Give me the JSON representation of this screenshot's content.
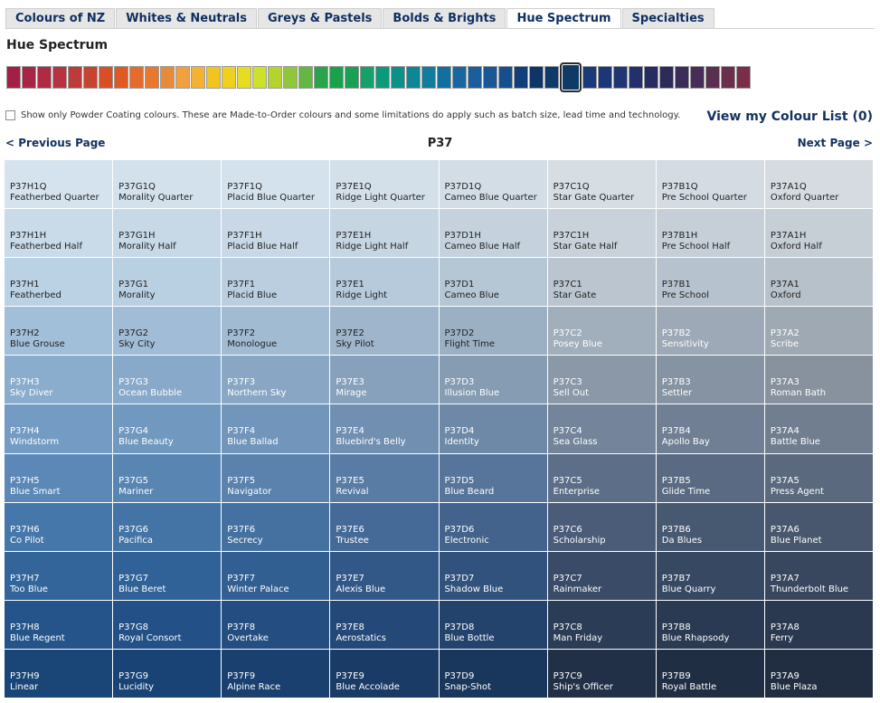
{
  "tabs": [
    {
      "label": "Colours of NZ",
      "active": false
    },
    {
      "label": "Whites & Neutrals",
      "active": false
    },
    {
      "label": "Greys & Pastels",
      "active": false
    },
    {
      "label": "Bolds & Brights",
      "active": false
    },
    {
      "label": "Hue Spectrum",
      "active": true
    },
    {
      "label": "Specialties",
      "active": false
    }
  ],
  "section_title": "Hue Spectrum",
  "hue_strip": {
    "selected_index": 36,
    "colors": [
      "#a31f45",
      "#a92545",
      "#b02b42",
      "#b9323f",
      "#bf3b39",
      "#c7422f",
      "#d94f25",
      "#e15922",
      "#e56b2d",
      "#e9782f",
      "#e88a3c",
      "#f0a13e",
      "#f3b233",
      "#f2c41f",
      "#efd11d",
      "#e6dc24",
      "#cde02a",
      "#b2d42b",
      "#8fc63a",
      "#64b743",
      "#2aa448",
      "#18a34a",
      "#18a153",
      "#16a06a",
      "#0d9a7b",
      "#0c9088",
      "#0b8795",
      "#127c9d",
      "#11709f",
      "#1967a0",
      "#1a5e9e",
      "#1b5797",
      "#174e8d",
      "#103f7a",
      "#0f3568",
      "#0f3a6a",
      "#0e3b66",
      "#1a3a79",
      "#1c3778",
      "#213574",
      "#24306b",
      "#262c60",
      "#2d2b58",
      "#3b2d57",
      "#4a2d56",
      "#59304f",
      "#6b2f4d",
      "#7a2e4a"
    ]
  },
  "powder_text": "Show only Powder Coating colours. These are Made-to-Order colours and some limitations do apply such as batch size, lead time and technology.",
  "colour_list_label": "View my Colour List (0)",
  "pager": {
    "prev": "< Previous Page",
    "next": "Next Page >",
    "page": "P37"
  },
  "grid": {
    "light_text": "#222222",
    "dark_text": "#ffffff",
    "rows": [
      [
        {
          "code": "P37H1Q",
          "name": "Featherbed Quarter",
          "color": "#d5e3ee",
          "text": "dark"
        },
        {
          "code": "P37G1Q",
          "name": "Morality Quarter",
          "color": "#d3e1ec",
          "text": "dark"
        },
        {
          "code": "P37F1Q",
          "name": "Placid Blue Quarter",
          "color": "#d4e2ed",
          "text": "dark"
        },
        {
          "code": "P37E1Q",
          "name": "Ridge Light Quarter",
          "color": "#d3dfe9",
          "text": "dark"
        },
        {
          "code": "P37D1Q",
          "name": "Cameo Blue Quarter",
          "color": "#d3dde6",
          "text": "dark"
        },
        {
          "code": "P37C1Q",
          "name": "Star Gate Quarter",
          "color": "#d6dde3",
          "text": "dark"
        },
        {
          "code": "P37B1Q",
          "name": "Pre School Quarter",
          "color": "#d4dbe2",
          "text": "dark"
        },
        {
          "code": "P37A1Q",
          "name": "Oxford Quarter",
          "color": "#d5dbe0",
          "text": "dark"
        }
      ],
      [
        {
          "code": "P37H1H",
          "name": "Featherbed Half",
          "color": "#c9dae9",
          "text": "dark"
        },
        {
          "code": "P37G1H",
          "name": "Morality Half",
          "color": "#c7d8e7",
          "text": "dark"
        },
        {
          "code": "P37F1H",
          "name": "Placid Blue Half",
          "color": "#c8d8e6",
          "text": "dark"
        },
        {
          "code": "P37E1H",
          "name": "Ridge Light Half",
          "color": "#c6d5e2",
          "text": "dark"
        },
        {
          "code": "P37D1H",
          "name": "Cameo Blue Half",
          "color": "#c5d2de",
          "text": "dark"
        },
        {
          "code": "P37C1H",
          "name": "Star Gate Half",
          "color": "#c9d2da",
          "text": "dark"
        },
        {
          "code": "P37B1H",
          "name": "Pre School Half",
          "color": "#c6cfd8",
          "text": "dark"
        },
        {
          "code": "P37A1H",
          "name": "Oxford Half",
          "color": "#c7cfd6",
          "text": "dark"
        }
      ],
      [
        {
          "code": "P37H1",
          "name": "Featherbed",
          "color": "#bbd1e4",
          "text": "dark"
        },
        {
          "code": "P37G1",
          "name": "Morality",
          "color": "#b9cfe2",
          "text": "dark"
        },
        {
          "code": "P37F1",
          "name": "Placid Blue",
          "color": "#bacee0",
          "text": "dark"
        },
        {
          "code": "P37E1",
          "name": "Ridge Light",
          "color": "#b7cadc",
          "text": "dark"
        },
        {
          "code": "P37D1",
          "name": "Cameo Blue",
          "color": "#b5c6d5",
          "text": "dark"
        },
        {
          "code": "P37C1",
          "name": "Star Gate",
          "color": "#bac5d0",
          "text": "dark"
        },
        {
          "code": "P37B1",
          "name": "Pre School",
          "color": "#b6c2cd",
          "text": "dark"
        },
        {
          "code": "P37A1",
          "name": "Oxford",
          "color": "#b7c1ca",
          "text": "dark"
        }
      ],
      [
        {
          "code": "P37H2",
          "name": "Blue Grouse",
          "color": "#a2bfd9",
          "text": "dark"
        },
        {
          "code": "P37G2",
          "name": "Sky City",
          "color": "#a0bcd6",
          "text": "dark"
        },
        {
          "code": "P37F2",
          "name": "Monologue",
          "color": "#a1bbd3",
          "text": "dark"
        },
        {
          "code": "P37E2",
          "name": "Sky Pilot",
          "color": "#9fb5cb",
          "text": "dark"
        },
        {
          "code": "P37D2",
          "name": "Flight Time",
          "color": "#9cb0c4",
          "text": "dark"
        },
        {
          "code": "P37C2",
          "name": "Posey Blue",
          "color": "#a1aebb",
          "text": "light"
        },
        {
          "code": "P37B2",
          "name": "Sensitivity",
          "color": "#9da9b6",
          "text": "light"
        },
        {
          "code": "P37A2",
          "name": "Scribe",
          "color": "#9ea9b3",
          "text": "light"
        }
      ],
      [
        {
          "code": "P37H3",
          "name": "Sky Diver",
          "color": "#8aaccd",
          "text": "light"
        },
        {
          "code": "P37G3",
          "name": "Ocean Bubble",
          "color": "#88a9c9",
          "text": "light"
        },
        {
          "code": "P37F3",
          "name": "Northern Sky",
          "color": "#89a7c5",
          "text": "light"
        },
        {
          "code": "P37E3",
          "name": "Mirage",
          "color": "#87a1bc",
          "text": "light"
        },
        {
          "code": "P37D3",
          "name": "Illusion Blue",
          "color": "#859cb3",
          "text": "light"
        },
        {
          "code": "P37C3",
          "name": "Sell Out",
          "color": "#8a98a8",
          "text": "light"
        },
        {
          "code": "P37B3",
          "name": "Settler",
          "color": "#8693a2",
          "text": "light"
        },
        {
          "code": "P37A3",
          "name": "Roman Bath",
          "color": "#87929e",
          "text": "light"
        }
      ],
      [
        {
          "code": "P37H4",
          "name": "Windstorm",
          "color": "#739bc3",
          "text": "light"
        },
        {
          "code": "P37G4",
          "name": "Blue Beauty",
          "color": "#7198bf",
          "text": "light"
        },
        {
          "code": "P37F4",
          "name": "Blue Ballad",
          "color": "#7295bb",
          "text": "light"
        },
        {
          "code": "P37E4",
          "name": "Bluebird's Belly",
          "color": "#708fb1",
          "text": "light"
        },
        {
          "code": "P37D4",
          "name": "Identity",
          "color": "#6e89a7",
          "text": "light"
        },
        {
          "code": "P37C4",
          "name": "Sea Glass",
          "color": "#74849a",
          "text": "light"
        },
        {
          "code": "P37B4",
          "name": "Apollo Bay",
          "color": "#707f93",
          "text": "light"
        },
        {
          "code": "P37A4",
          "name": "Battle Blue",
          "color": "#717e8f",
          "text": "light"
        }
      ],
      [
        {
          "code": "P37H5",
          "name": "Blue Smart",
          "color": "#5b88b6",
          "text": "light"
        },
        {
          "code": "P37G5",
          "name": "Mariner",
          "color": "#5985b2",
          "text": "light"
        },
        {
          "code": "P37F5",
          "name": "Navigator",
          "color": "#5a82ad",
          "text": "light"
        },
        {
          "code": "P37E5",
          "name": "Revival",
          "color": "#597ca4",
          "text": "light"
        },
        {
          "code": "P37D5",
          "name": "Blue Beard",
          "color": "#57759a",
          "text": "light"
        },
        {
          "code": "P37C5",
          "name": "Enterprise",
          "color": "#5d6f88",
          "text": "light"
        },
        {
          "code": "P37B5",
          "name": "Glide Time",
          "color": "#5a6a82",
          "text": "light"
        },
        {
          "code": "P37A5",
          "name": "Press Agent",
          "color": "#5b697e",
          "text": "light"
        }
      ],
      [
        {
          "code": "P37H6",
          "name": "Co Pilot",
          "color": "#4677aa",
          "text": "light"
        },
        {
          "code": "P37G6",
          "name": "Pacifica",
          "color": "#4474a6",
          "text": "light"
        },
        {
          "code": "P37F6",
          "name": "Secrecy",
          "color": "#4571a1",
          "text": "light"
        },
        {
          "code": "P37E6",
          "name": "Trustee",
          "color": "#456a97",
          "text": "light"
        },
        {
          "code": "P37D6",
          "name": "Electronic",
          "color": "#43638c",
          "text": "light"
        },
        {
          "code": "P37C6",
          "name": "Scholarship",
          "color": "#4a5c77",
          "text": "light"
        },
        {
          "code": "P37B6",
          "name": "Da Blues",
          "color": "#475871",
          "text": "light"
        },
        {
          "code": "P37A6",
          "name": "Blue Planet",
          "color": "#48576d",
          "text": "light"
        }
      ],
      [
        {
          "code": "P37H7",
          "name": "Too Blue",
          "color": "#33659b",
          "text": "light"
        },
        {
          "code": "P37G7",
          "name": "Blue Beret",
          "color": "#316297",
          "text": "light"
        },
        {
          "code": "P37F7",
          "name": "Winter Palace",
          "color": "#325f92",
          "text": "light"
        },
        {
          "code": "P37E7",
          "name": "Alexis Blue",
          "color": "#325888",
          "text": "light"
        },
        {
          "code": "P37D7",
          "name": "Shadow Blue",
          "color": "#31527d",
          "text": "light"
        },
        {
          "code": "P37C7",
          "name": "Rainmaker",
          "color": "#394b67",
          "text": "light"
        },
        {
          "code": "P37B7",
          "name": "Blue Quarry",
          "color": "#374862",
          "text": "light"
        },
        {
          "code": "P37A7",
          "name": "Thunderbolt Blue",
          "color": "#38475e",
          "text": "light"
        }
      ],
      [
        {
          "code": "P37H8",
          "name": "Blue Regent",
          "color": "#24548a",
          "text": "light"
        },
        {
          "code": "P37G8",
          "name": "Royal Consort",
          "color": "#235187",
          "text": "light"
        },
        {
          "code": "P37F8",
          "name": "Overtake",
          "color": "#244e81",
          "text": "light"
        },
        {
          "code": "P37E8",
          "name": "Aerostatics",
          "color": "#244878",
          "text": "light"
        },
        {
          "code": "P37D8",
          "name": "Blue Bottle",
          "color": "#23436d",
          "text": "light"
        },
        {
          "code": "P37C8",
          "name": "Man Friday",
          "color": "#2b3c56",
          "text": "light"
        },
        {
          "code": "P37B8",
          "name": "Blue Rhapsody",
          "color": "#293a52",
          "text": "light"
        },
        {
          "code": "P37A8",
          "name": "Ferry",
          "color": "#2a394f",
          "text": "light"
        }
      ],
      [
        {
          "code": "P37H9",
          "name": "Linear",
          "color": "#194677",
          "text": "light"
        },
        {
          "code": "P37G9",
          "name": "Lucidity",
          "color": "#184374",
          "text": "light"
        },
        {
          "code": "P37F9",
          "name": "Alpine Race",
          "color": "#19406f",
          "text": "light"
        },
        {
          "code": "P37E9",
          "name": "Blue Accolade",
          "color": "#1a3b66",
          "text": "light"
        },
        {
          "code": "P37D9",
          "name": "Snap-Shot",
          "color": "#19375c",
          "text": "light"
        },
        {
          "code": "P37C9",
          "name": "Ship's Officer",
          "color": "#213047",
          "text": "light"
        },
        {
          "code": "P37B9",
          "name": "Royal Battle",
          "color": "#202e44",
          "text": "light"
        },
        {
          "code": "P37A9",
          "name": "Blue Plaza",
          "color": "#212e42",
          "text": "light"
        }
      ]
    ]
  }
}
